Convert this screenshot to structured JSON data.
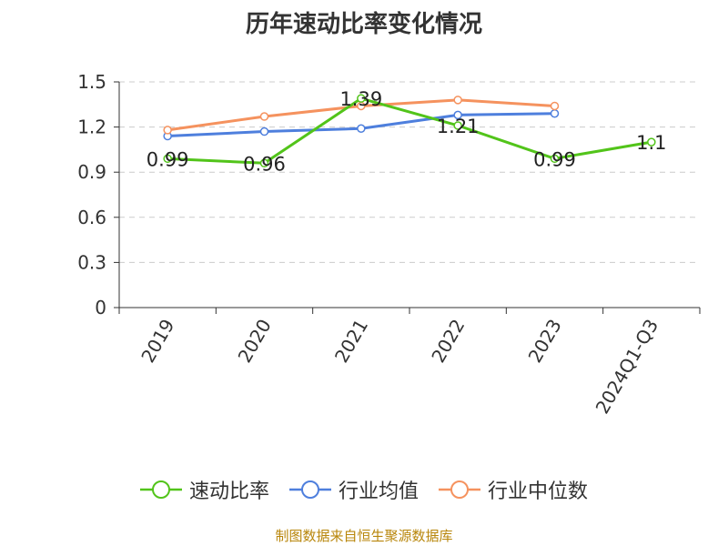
{
  "chart_data": {
    "type": "line",
    "title": "历年速动比率变化情况",
    "xlabel": "",
    "ylabel": "",
    "categories": [
      "2019",
      "2020",
      "2021",
      "2022",
      "2023",
      "2024Q1-Q3"
    ],
    "yticks": [
      "0",
      "0.3",
      "0.6",
      "0.9",
      "1.2",
      "1.5"
    ],
    "ylim": [
      0,
      1.5
    ],
    "grid": true,
    "legend_position": "bottom",
    "series": [
      {
        "name": "速动比率",
        "color": "#52c41a",
        "values": [
          0.99,
          0.96,
          1.39,
          1.21,
          0.99,
          1.1
        ],
        "labels": [
          "0.99",
          "0.96",
          "1.39",
          "1.21",
          "0.99",
          "1.1"
        ]
      },
      {
        "name": "行业均值",
        "color": "#4e7fdd",
        "values": [
          1.14,
          1.17,
          1.19,
          1.28,
          1.29,
          null
        ],
        "labels": []
      },
      {
        "name": "行业中位数",
        "color": "#f5925e",
        "values": [
          1.18,
          1.27,
          1.34,
          1.38,
          1.34,
          null
        ],
        "labels": []
      }
    ]
  },
  "source_note": "制图数据来自恒生聚源数据库"
}
